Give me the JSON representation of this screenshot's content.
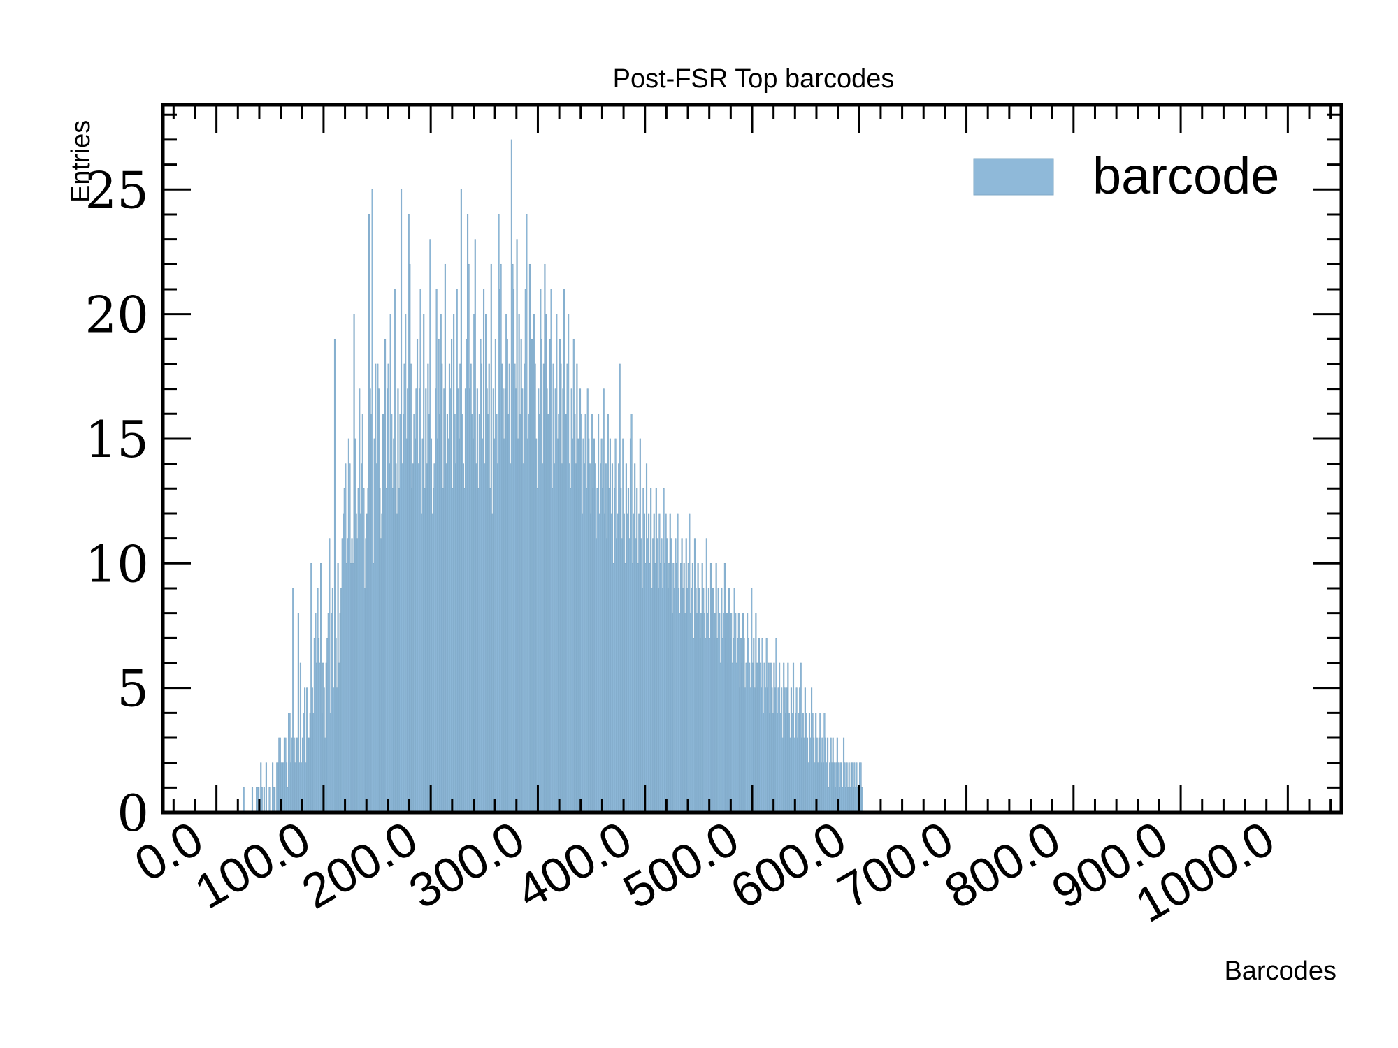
{
  "chart_data": {
    "type": "bar",
    "title": "Post-FSR Top barcodes",
    "xlabel": "Barcodes",
    "ylabel": "Entries",
    "xlim": [
      -50,
      1050
    ],
    "ylim": [
      0,
      28.4
    ],
    "x_ticks": [
      0,
      100,
      200,
      300,
      400,
      500,
      600,
      700,
      800,
      900,
      1000
    ],
    "x_tick_labels": [
      "0.0",
      "100.0",
      "200.0",
      "300.0",
      "400.0",
      "500.0",
      "600.0",
      "700.0",
      "800.0",
      "900.0",
      "1000.0"
    ],
    "y_ticks": [
      0,
      5,
      10,
      15,
      20,
      25
    ],
    "y_tick_labels": [
      "0",
      "5",
      "10",
      "15",
      "20",
      "25"
    ],
    "bin_width": 1,
    "bin_start": 25,
    "legend": {
      "position": "top-right",
      "entries": [
        {
          "name": "barcode",
          "color": "#8fb9d9"
        }
      ]
    },
    "grid": false,
    "series": [
      {
        "name": "barcode",
        "color": "#8fb9d9",
        "edge_color": "#7fa8c6",
        "values": [
          1,
          0,
          0,
          0,
          0,
          0,
          0,
          0,
          1,
          0,
          0,
          0,
          1,
          1,
          1,
          0,
          2,
          1,
          0,
          1,
          0,
          2,
          0,
          0,
          1,
          0,
          0,
          2,
          1,
          1,
          0,
          2,
          2,
          3,
          3,
          2,
          2,
          2,
          3,
          3,
          2,
          1,
          4,
          4,
          2,
          3,
          9,
          3,
          2,
          3,
          3,
          8,
          2,
          6,
          2,
          3,
          4,
          5,
          2,
          5,
          3,
          3,
          4,
          10,
          5,
          4,
          7,
          8,
          6,
          9,
          7,
          6,
          10,
          4,
          6,
          5,
          3,
          6,
          7,
          8,
          11,
          4,
          8,
          9,
          5,
          19,
          7,
          5,
          10,
          6,
          8,
          9,
          11,
          12,
          13,
          14,
          10,
          11,
          15,
          14,
          10,
          11,
          10,
          20,
          15,
          12,
          11,
          13,
          17,
          12,
          14,
          16,
          13,
          9,
          11,
          12,
          13,
          24,
          17,
          16,
          25,
          10,
          15,
          18,
          14,
          18,
          17,
          13,
          11,
          12,
          16,
          15,
          19,
          13,
          17,
          18,
          14,
          20,
          16,
          13,
          15,
          21,
          14,
          12,
          17,
          13,
          16,
          25,
          14,
          16,
          18,
          20,
          15,
          17,
          24,
          22,
          18,
          13,
          14,
          16,
          15,
          17,
          19,
          14,
          17,
          21,
          12,
          15,
          20,
          13,
          17,
          14,
          18,
          16,
          23,
          15,
          12,
          13,
          14,
          17,
          21,
          15,
          19,
          16,
          20,
          18,
          13,
          17,
          22,
          14,
          16,
          15,
          18,
          17,
          19,
          13,
          20,
          16,
          14,
          21,
          17,
          15,
          18,
          25,
          16,
          14,
          13,
          17,
          19,
          24,
          22,
          17,
          18,
          16,
          15,
          20,
          23,
          14,
          17,
          13,
          16,
          19,
          18,
          15,
          21,
          14,
          20,
          17,
          16,
          18,
          13,
          22,
          12,
          17,
          15,
          19,
          16,
          14,
          24,
          21,
          22,
          18,
          17,
          15,
          17,
          20,
          19,
          16,
          18,
          14,
          27,
          22,
          21,
          18,
          17,
          23,
          15,
          20,
          16,
          19,
          17,
          14,
          18,
          21,
          24,
          15,
          16,
          22,
          17,
          19,
          14,
          20,
          18,
          15,
          13,
          17,
          16,
          21,
          19,
          14,
          18,
          22,
          20,
          17,
          16,
          15,
          19,
          21,
          13,
          18,
          14,
          17,
          20,
          15,
          16,
          19,
          18,
          14,
          17,
          21,
          15,
          16,
          18,
          20,
          14,
          13,
          17,
          15,
          19,
          16,
          14,
          18,
          15,
          13,
          17,
          16,
          12,
          15,
          14,
          16,
          13,
          17,
          15,
          14,
          12,
          16,
          13,
          15,
          14,
          11,
          13,
          16,
          12,
          14,
          15,
          13,
          17,
          12,
          14,
          11,
          16,
          13,
          15,
          12,
          14,
          10,
          13,
          15,
          11,
          12,
          14,
          18,
          13,
          11,
          15,
          12,
          10,
          14,
          12,
          13,
          11,
          15,
          16,
          10,
          12,
          14,
          11,
          13,
          10,
          12,
          15,
          11,
          9,
          13,
          12,
          10,
          14,
          11,
          12,
          10,
          13,
          9,
          11,
          12,
          10,
          13,
          11,
          9,
          12,
          10,
          11,
          9,
          13,
          10,
          12,
          11,
          9,
          10,
          12,
          11,
          8,
          10,
          9,
          11,
          10,
          12,
          9,
          8,
          10,
          11,
          9,
          10,
          8,
          11,
          9,
          10,
          12,
          8,
          9,
          10,
          7,
          11,
          9,
          8,
          10,
          9,
          7,
          8,
          10,
          9,
          8,
          7,
          11,
          8,
          9,
          7,
          10,
          8,
          9,
          7,
          8,
          10,
          7,
          9,
          8,
          6,
          9,
          7,
          8,
          10,
          7,
          8,
          6,
          9,
          7,
          8,
          6,
          7,
          9,
          8,
          6,
          7,
          8,
          5,
          7,
          6,
          8,
          7,
          5,
          6,
          8,
          7,
          6,
          5,
          9,
          6,
          7,
          5,
          8,
          6,
          5,
          7,
          6,
          5,
          7,
          4,
          6,
          5,
          7,
          5,
          6,
          4,
          6,
          5,
          4,
          6,
          5,
          7,
          4,
          5,
          6,
          4,
          5,
          3,
          6,
          5,
          4,
          5,
          6,
          4,
          3,
          5,
          4,
          6,
          3,
          4,
          5,
          3,
          4,
          5,
          6,
          3,
          4,
          3,
          5,
          4,
          3,
          2,
          4,
          3,
          5,
          4,
          3,
          2,
          4,
          3,
          2,
          3,
          4,
          2,
          3,
          2,
          4,
          3,
          2,
          3,
          1,
          2,
          3,
          2,
          3,
          2,
          1,
          2,
          3,
          2,
          1,
          2,
          2,
          1,
          3,
          2,
          1,
          2,
          1,
          2,
          1,
          2,
          2,
          1,
          2,
          1,
          2,
          1,
          1,
          2,
          2,
          1,
          0
        ]
      }
    ]
  }
}
